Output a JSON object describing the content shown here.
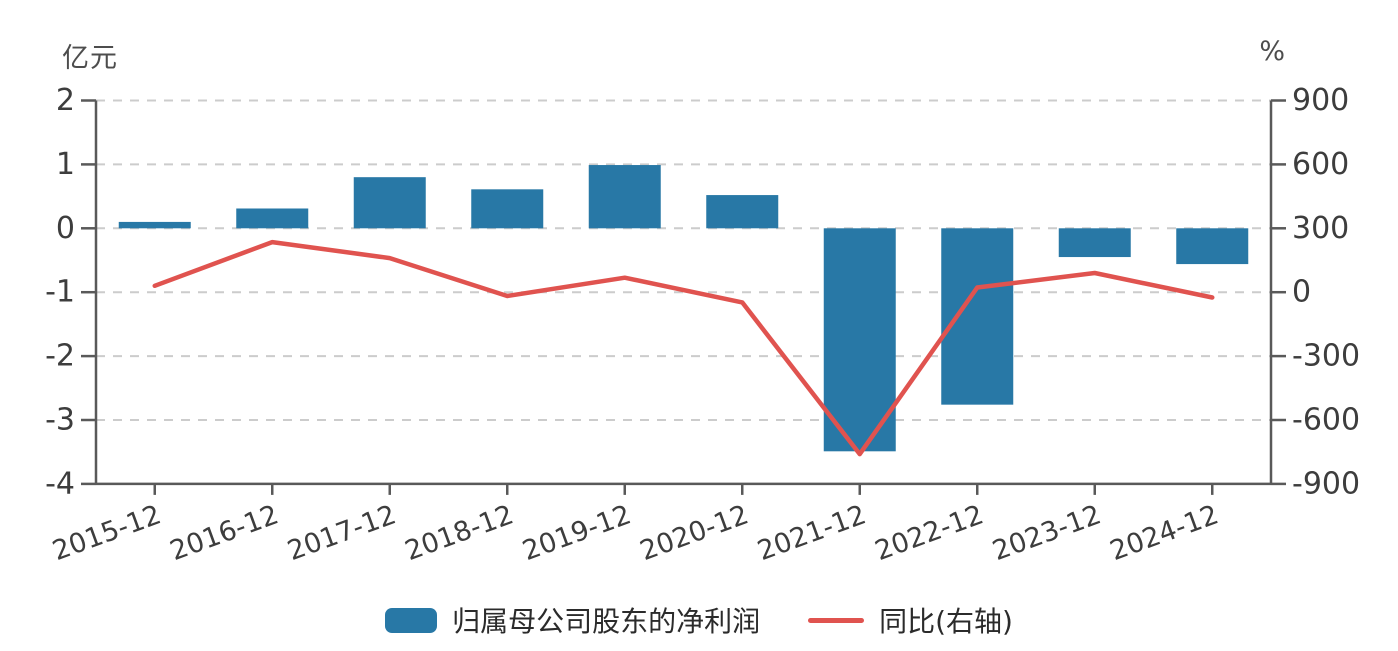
{
  "colors": {
    "bar": "#2878A6",
    "line": "#E0534F",
    "axis": "#595959",
    "grid": "#cccccc",
    "tick_text": "#3d3d3d",
    "unit_text": "#4d4d4d"
  },
  "legend": {
    "bar_label": "归属母公司股东的净利润",
    "line_label": "同比(右轴)"
  },
  "chart_data": {
    "type": "bar+line dual-axis",
    "categories": [
      "2015-12",
      "2016-12",
      "2017-12",
      "2018-12",
      "2019-12",
      "2020-12",
      "2021-12",
      "2022-12",
      "2023-12",
      "2024-12"
    ],
    "series": [
      {
        "name": "归属母公司股东的净利润",
        "type": "bar",
        "axis": "left",
        "values": [
          0.1,
          0.31,
          0.8,
          0.61,
          0.99,
          0.52,
          -3.49,
          -2.76,
          -0.45,
          -0.56
        ]
      },
      {
        "name": "同比(右轴)",
        "type": "line",
        "axis": "right",
        "values": [
          30,
          235,
          160,
          -18,
          68,
          -48,
          -760,
          22,
          90,
          -25
        ]
      }
    ],
    "left_axis": {
      "unit": "亿元",
      "min": -4,
      "max": 2,
      "ticks": [
        2,
        1,
        0,
        -1,
        -2,
        -3,
        -4
      ]
    },
    "right_axis": {
      "unit": "%",
      "min": -900,
      "max": 900,
      "ticks": [
        900,
        600,
        300,
        0,
        -300,
        -600,
        -900
      ]
    },
    "grid": "horizontal dashed lines at left-axis ticks",
    "legend_position": "bottom-center",
    "x_label_rotation": -20
  }
}
